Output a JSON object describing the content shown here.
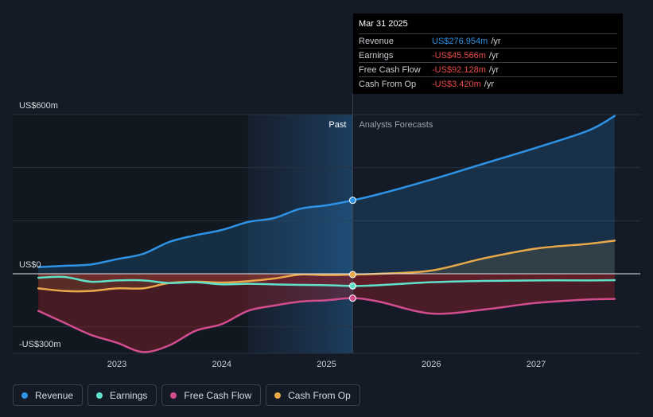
{
  "chart_data": {
    "type": "line",
    "ylim": [
      -300,
      600
    ],
    "y_ticks": [
      {
        "value": 600,
        "label": "US$600m"
      },
      {
        "value": 0,
        "label": "US$0"
      },
      {
        "value": -300,
        "label": "-US$300m"
      }
    ],
    "x_ticks": [
      {
        "value": 2023,
        "label": "2023"
      },
      {
        "value": 2024,
        "label": "2024"
      },
      {
        "value": 2025,
        "label": "2025"
      },
      {
        "value": 2026,
        "label": "2026"
      },
      {
        "value": 2027,
        "label": "2027"
      }
    ],
    "xlim": [
      2022.0,
      2028.0
    ],
    "present_x": 2025.25,
    "forecast_shade_start": 2024.25,
    "past_label": "Past",
    "forecast_label": "Analysts Forecasts",
    "series": [
      {
        "name": "Revenue",
        "color": "#2e93e6",
        "x": [
          2022.25,
          2022.5,
          2022.75,
          2023.0,
          2023.25,
          2023.5,
          2023.75,
          2024.0,
          2024.25,
          2024.5,
          2024.75,
          2025.0,
          2025.25,
          2025.5,
          2026.0,
          2026.5,
          2027.0,
          2027.5,
          2027.75
        ],
        "values": [
          25,
          30,
          35,
          55,
          75,
          120,
          145,
          165,
          195,
          210,
          245,
          258,
          277,
          300,
          355,
          415,
          475,
          540,
          595
        ]
      },
      {
        "name": "Earnings",
        "color": "#5fe0c8",
        "x": [
          2022.25,
          2022.5,
          2022.75,
          2023.0,
          2023.25,
          2023.5,
          2023.75,
          2024.0,
          2024.25,
          2024.5,
          2024.75,
          2025.0,
          2025.25,
          2025.5,
          2026.0,
          2026.5,
          2027.0,
          2027.5,
          2027.75
        ],
        "values": [
          -15,
          -12,
          -30,
          -25,
          -25,
          -35,
          -32,
          -40,
          -38,
          -40,
          -42,
          -43,
          -46,
          -43,
          -32,
          -27,
          -25,
          -25,
          -24
        ]
      },
      {
        "name": "Free Cash Flow",
        "color": "#d14d8e",
        "x": [
          2022.25,
          2022.5,
          2022.75,
          2023.0,
          2023.25,
          2023.5,
          2023.75,
          2024.0,
          2024.25,
          2024.5,
          2024.75,
          2025.0,
          2025.25,
          2025.5,
          2026.0,
          2026.5,
          2027.0,
          2027.5,
          2027.75
        ],
        "values": [
          -140,
          -185,
          -230,
          -260,
          -295,
          -270,
          -215,
          -190,
          -140,
          -120,
          -105,
          -100,
          -92,
          -105,
          -150,
          -135,
          -110,
          -97,
          -95
        ]
      },
      {
        "name": "Cash From Op",
        "color": "#e8a94b",
        "x": [
          2022.25,
          2022.5,
          2022.75,
          2023.0,
          2023.25,
          2023.5,
          2023.75,
          2024.0,
          2024.25,
          2024.5,
          2024.75,
          2025.0,
          2025.25,
          2025.5,
          2026.0,
          2026.5,
          2027.0,
          2027.5,
          2027.75
        ],
        "values": [
          -55,
          -65,
          -65,
          -55,
          -55,
          -35,
          -30,
          -33,
          -28,
          -18,
          -3,
          -5,
          -3,
          0,
          12,
          58,
          95,
          113,
          125
        ]
      }
    ]
  },
  "tooltip": {
    "date": "Mar 31 2025",
    "rows": [
      {
        "label": "Revenue",
        "value": "US$276.954m",
        "unit": "/yr",
        "color": "#2e93e6"
      },
      {
        "label": "Earnings",
        "value": "-US$45.566m",
        "unit": "/yr",
        "color": "#e84a4a"
      },
      {
        "label": "Free Cash Flow",
        "value": "-US$92.128m",
        "unit": "/yr",
        "color": "#e84a4a"
      },
      {
        "label": "Cash From Op",
        "value": "-US$3.420m",
        "unit": "/yr",
        "color": "#e84a4a"
      }
    ]
  },
  "legend": [
    {
      "label": "Revenue",
      "color": "#2e93e6"
    },
    {
      "label": "Earnings",
      "color": "#5fe0c8"
    },
    {
      "label": "Free Cash Flow",
      "color": "#d14d8e"
    },
    {
      "label": "Cash From Op",
      "color": "#e8a94b"
    }
  ]
}
